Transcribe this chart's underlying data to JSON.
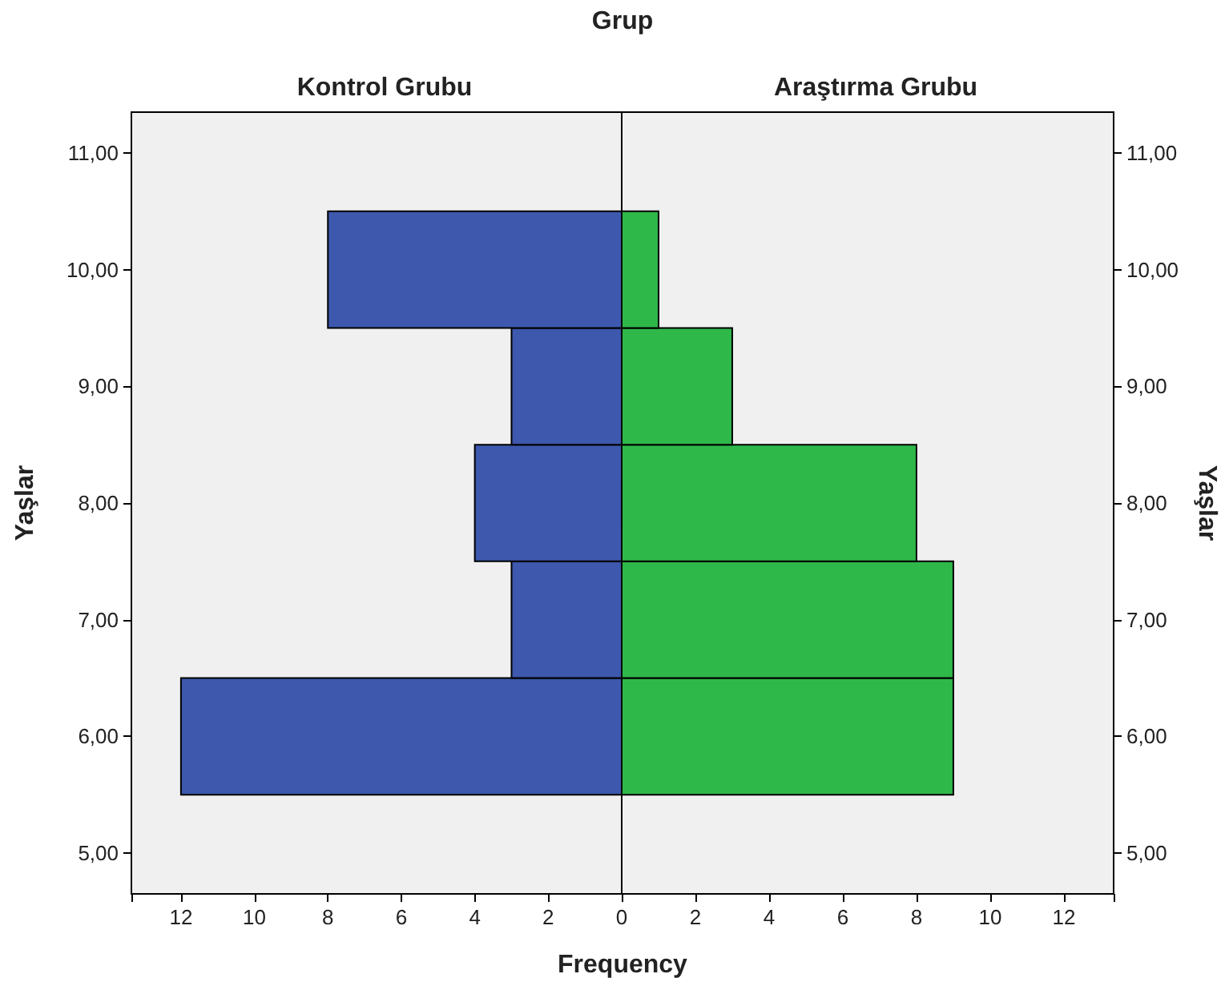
{
  "chart_data": [
    {
      "type": "histogram",
      "orientation": "horizontal",
      "title": "Kontrol Grubu",
      "annotations": [
        "Grup"
      ],
      "xlabel": "Frequency",
      "ylabel": "Yaşlar",
      "color": "#3d58ad",
      "bins": [
        5.5,
        6.5,
        7.5,
        8.5,
        9.5,
        10.5
      ],
      "values": [
        12,
        3,
        4,
        3,
        8
      ],
      "xlim": [
        13.35,
        0
      ],
      "xticks": [
        0,
        2,
        4,
        6,
        8,
        10,
        12
      ],
      "ylim": [
        4.65,
        11.35
      ],
      "yticks": [
        {
          "value": 5,
          "label": "5,00"
        },
        {
          "value": 6,
          "label": "6,00"
        },
        {
          "value": 7,
          "label": "7,00"
        },
        {
          "value": 8,
          "label": "8,00"
        },
        {
          "value": 9,
          "label": "9,00"
        },
        {
          "value": 10,
          "label": "10,00"
        },
        {
          "value": 11,
          "label": "11,00"
        }
      ]
    },
    {
      "type": "histogram",
      "orientation": "horizontal",
      "title": "Araştırma Grubu",
      "ylabel": "Yaşlar",
      "color": "#2fb84a",
      "bins": [
        5.5,
        6.5,
        7.5,
        8.5,
        9.5,
        10.5
      ],
      "values": [
        9,
        9,
        8,
        3,
        1
      ],
      "xlim": [
        0,
        13.35
      ],
      "xticks": [
        {
          "value": 0,
          "label": null
        },
        2,
        4,
        6,
        8,
        10,
        12
      ],
      "ylim": [
        4.65,
        11.35
      ],
      "yticks": [
        {
          "value": 5,
          "label": "5,00"
        },
        {
          "value": 6,
          "label": "6,00"
        },
        {
          "value": 7,
          "label": "7,00"
        },
        {
          "value": 8,
          "label": "8,00"
        },
        {
          "value": 9,
          "label": "9,00"
        },
        {
          "value": 10,
          "label": "10,00"
        },
        {
          "value": 11,
          "label": "11,00"
        }
      ]
    }
  ]
}
